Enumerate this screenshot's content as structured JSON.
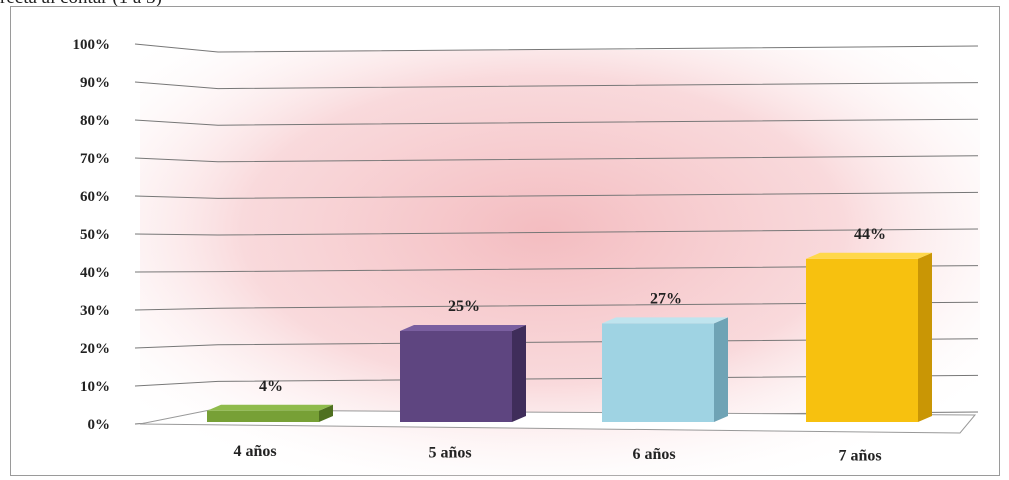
{
  "header": {
    "text": "recta al contar (1 a 3)"
  },
  "chart_data": {
    "type": "bar",
    "categories": [
      "4 años",
      "5 años",
      "6 años",
      "7 años"
    ],
    "values": [
      4,
      25,
      27,
      44
    ],
    "data_labels": [
      "4%",
      "25%",
      "27%",
      "44%"
    ],
    "y_ticks": [
      "0%",
      "10%",
      "20%",
      "30%",
      "40%",
      "50%",
      "60%",
      "70%",
      "80%",
      "90%",
      "100%"
    ],
    "ylim": [
      0,
      100
    ],
    "grid": true,
    "legend": "none",
    "colors": [
      "#77a036",
      "#5e4580",
      "#9fd3e3",
      "#f7c10f"
    ],
    "side_colors": [
      "#4f7020",
      "#3f2d5a",
      "#6fa3b5",
      "#c99605"
    ],
    "top_colors": [
      "#8fbb4c",
      "#7a5fa0",
      "#bfe4ee",
      "#ffd84a"
    ]
  }
}
